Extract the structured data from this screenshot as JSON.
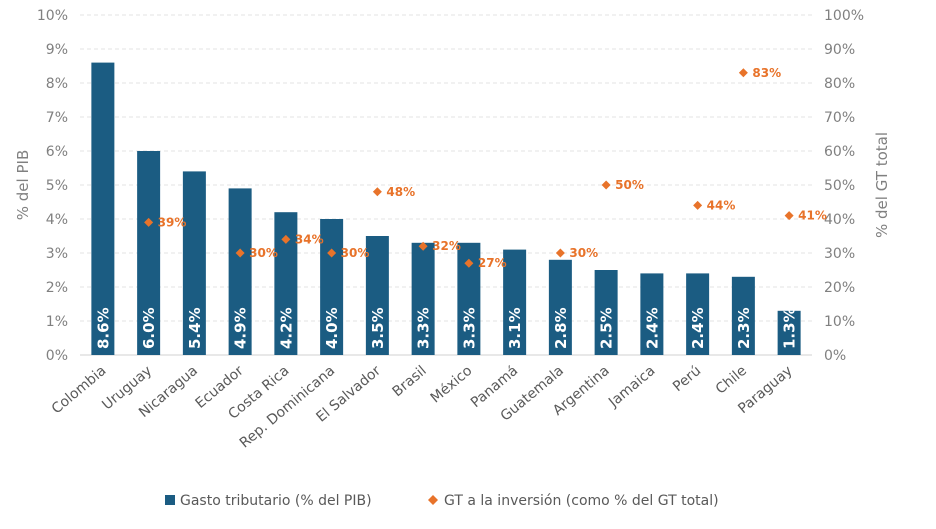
{
  "chart_data": {
    "type": "bar",
    "categories": [
      "Colombia",
      "Uruguay",
      "Nicaragua",
      "Ecuador",
      "Costa Rica",
      "Rep. Dominicana",
      "El Salvador",
      "Brasil",
      "México",
      "Panamá",
      "Guatemala",
      "Argentina",
      "Jamaica",
      "Perú",
      "Chile",
      "Paraguay"
    ],
    "series": [
      {
        "name": "Gasto tributario (% del PIB)",
        "type": "bar",
        "axis": "left",
        "color": "#1B5C82",
        "values": [
          8.6,
          6.0,
          5.4,
          4.9,
          4.2,
          4.0,
          3.5,
          3.3,
          3.3,
          3.1,
          2.8,
          2.5,
          2.4,
          2.4,
          2.3,
          1.3
        ],
        "labels": [
          "8.6%",
          "6.0%",
          "5.4%",
          "4.9%",
          "4.2%",
          "4.0%",
          "3.5%",
          "3.3%",
          "3.3%",
          "3.1%",
          "2.8%",
          "2.5%",
          "2.4%",
          "2.4%",
          "2.3%",
          "1.3%"
        ]
      },
      {
        "name": "GT a la inversión (como % del GT total)",
        "type": "scatter",
        "axis": "right",
        "color": "#E8732A",
        "marker": "diamond",
        "values": [
          null,
          39,
          null,
          30,
          34,
          30,
          48,
          32,
          27,
          null,
          30,
          50,
          null,
          44,
          83,
          41
        ],
        "labels": [
          null,
          "39%",
          null,
          "30%",
          "34%",
          "30%",
          "48%",
          "32%",
          "27%",
          null,
          "30%",
          "50%",
          null,
          "44%",
          "83%",
          "41%"
        ]
      }
    ],
    "ylabel": "% del PIB",
    "ylabel_right": "% del GT total",
    "ylim": [
      0,
      10
    ],
    "ylim_right": [
      0,
      100
    ],
    "yticks": [
      "0%",
      "1%",
      "2%",
      "3%",
      "4%",
      "5%",
      "6%",
      "7%",
      "8%",
      "9%",
      "10%"
    ],
    "yticks_right": [
      "0%",
      "10%",
      "20%",
      "30%",
      "40%",
      "50%",
      "60%",
      "70%",
      "80%",
      "90%",
      "100%"
    ],
    "grid": true,
    "grid_style": "dashed",
    "legend_position": "bottom"
  }
}
